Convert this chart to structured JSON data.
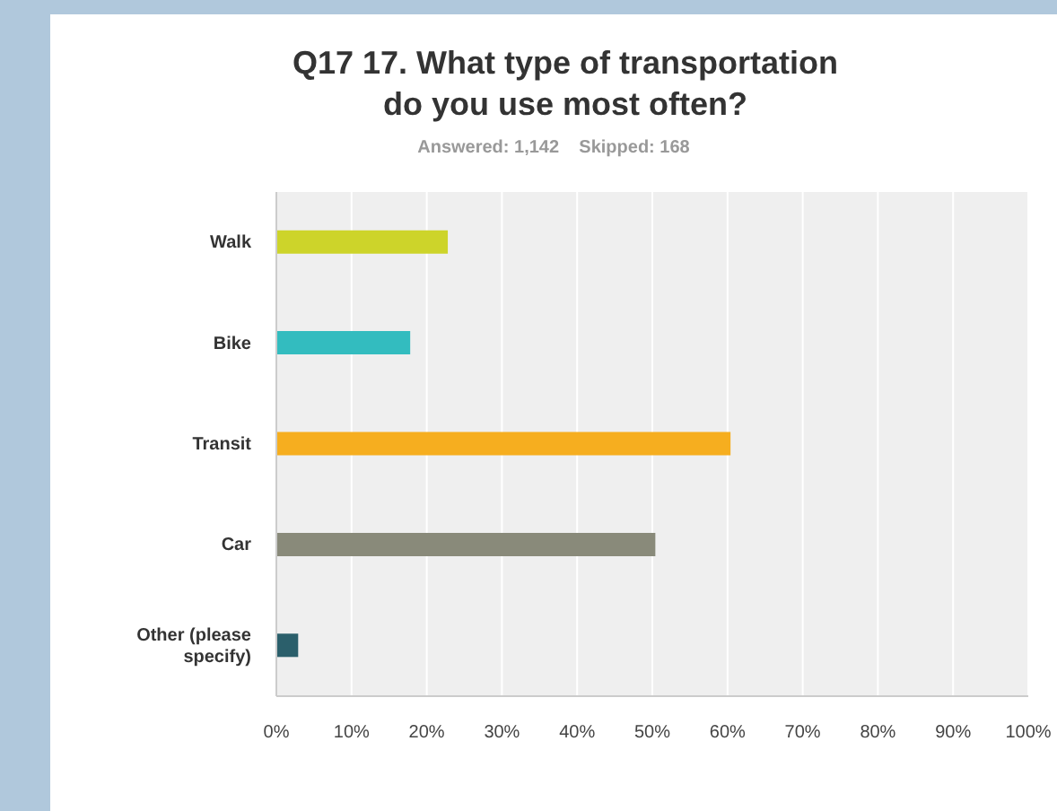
{
  "chart_data": {
    "type": "bar",
    "orientation": "horizontal",
    "title": "Q17 17. What type of transportation do you use most often?",
    "subtitle": "Answered: 1,142    Skipped: 168",
    "categories": [
      "Walk",
      "Bike",
      "Transit",
      "Car",
      "Other (please specify)"
    ],
    "values": [
      22.8,
      17.8,
      60.4,
      50.4,
      2.9
    ],
    "colors": [
      "#cdd42a",
      "#33bcbf",
      "#f6ae1f",
      "#898a7a",
      "#2b5f6b"
    ],
    "xlim": [
      0,
      100
    ],
    "xticks": [
      {
        "value": 0,
        "label": "0%"
      },
      {
        "value": 10,
        "label": "10%"
      },
      {
        "value": 20,
        "label": "20%"
      },
      {
        "value": 30,
        "label": "30%"
      },
      {
        "value": 40,
        "label": "40%"
      },
      {
        "value": 50,
        "label": "50%"
      },
      {
        "value": 60,
        "label": "60%"
      },
      {
        "value": 70,
        "label": "70%"
      },
      {
        "value": 80,
        "label": "80%"
      },
      {
        "value": 90,
        "label": "90%"
      },
      {
        "value": 100,
        "label": "100%"
      }
    ],
    "grid": "x"
  }
}
